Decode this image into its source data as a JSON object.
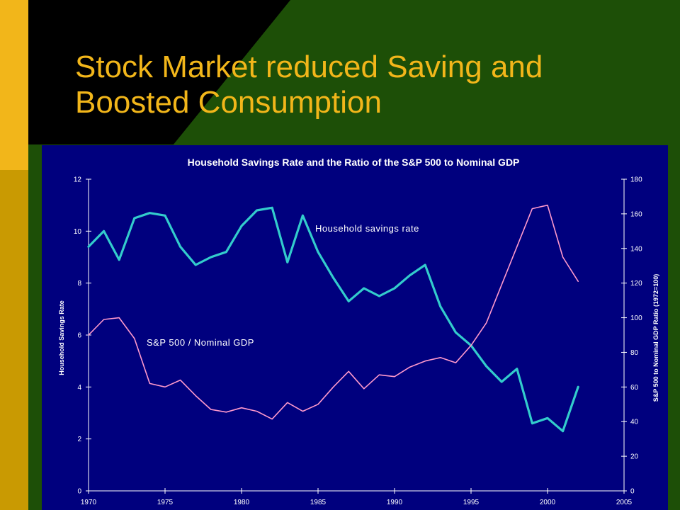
{
  "slide": {
    "title": "Stock Market reduced Saving and\nBoosted Consumption",
    "colors": {
      "background": "#000000",
      "green_panel": "#1d4f07",
      "left_bar": "#f2b61a",
      "left_bar_lower": "#c99a02",
      "title": "#f2b61a",
      "chart_bg": "#00007e"
    }
  },
  "chart_data": {
    "type": "line",
    "title": "Household Savings Rate and the Ratio of the S&P 500 to Nominal GDP",
    "xlabel": "",
    "ylabel": "Household Savings Rate",
    "y2label": "S&P 500 to Nominal GDP Ratio (1972=100)",
    "xlim": [
      1970,
      2005
    ],
    "ylim": [
      0,
      12
    ],
    "y2lim": [
      0,
      180
    ],
    "x_ticks": [
      "1970",
      "1975",
      "1980",
      "1985",
      "1990",
      "1995",
      "2000",
      "2005"
    ],
    "y_ticks": [
      "0",
      "2",
      "4",
      "6",
      "8",
      "10",
      "12"
    ],
    "y2_ticks": [
      "0",
      "20",
      "40",
      "60",
      "80",
      "100",
      "120",
      "140",
      "160",
      "180"
    ],
    "grid": false,
    "series": [
      {
        "name": "Household savings rate",
        "axis": "left",
        "color": "#33cccc",
        "x": [
          1970,
          1971,
          1972,
          1973,
          1974,
          1975,
          1976,
          1977,
          1978,
          1979,
          1980,
          1981,
          1982,
          1983,
          1984,
          1985,
          1986,
          1987,
          1988,
          1989,
          1990,
          1991,
          1992,
          1993,
          1994,
          1995,
          1996,
          1997,
          1998,
          1999,
          2000,
          2001,
          2002
        ],
        "values": [
          9.4,
          10.0,
          8.9,
          10.5,
          10.7,
          10.6,
          9.4,
          8.7,
          9.0,
          9.2,
          10.2,
          10.8,
          10.9,
          8.8,
          10.6,
          9.2,
          8.2,
          7.3,
          7.8,
          7.5,
          7.8,
          8.3,
          8.7,
          7.1,
          6.1,
          5.6,
          4.8,
          4.2,
          4.7,
          2.6,
          2.8,
          2.3,
          4.0
        ]
      },
      {
        "name": "S&P 500 / Nominal GDP",
        "axis": "right",
        "color": "#ff99cc",
        "x": [
          1970,
          1971,
          1972,
          1973,
          1974,
          1975,
          1976,
          1977,
          1978,
          1979,
          1980,
          1981,
          1982,
          1983,
          1984,
          1985,
          1986,
          1987,
          1988,
          1989,
          1990,
          1991,
          1992,
          1993,
          1994,
          1995,
          1996,
          1997,
          1998,
          1999,
          2000,
          2001,
          2002
        ],
        "values": [
          90,
          99,
          100,
          88,
          62,
          60,
          64,
          55,
          47,
          45.5,
          48,
          46,
          41.5,
          51,
          46,
          50,
          60,
          69,
          59,
          67,
          66,
          71.5,
          75,
          77,
          74,
          84,
          97,
          119,
          141,
          163,
          165,
          135,
          121
        ]
      }
    ],
    "annotations": [
      "Household savings rate",
      "S&P 500 / Nominal GDP"
    ]
  }
}
